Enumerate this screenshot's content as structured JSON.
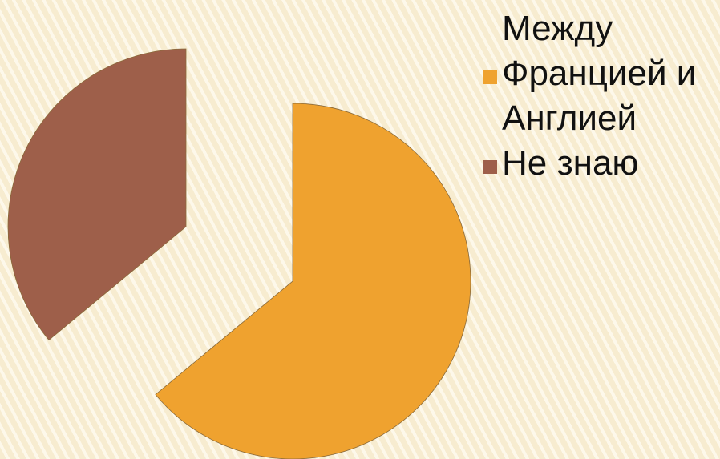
{
  "chart_data": {
    "type": "pie",
    "title": "",
    "exploded": true,
    "start_angle_deg": 0,
    "direction": "clockwise",
    "series": [
      {
        "name": "",
        "slices": [
          {
            "label": "Между Францией и Англией",
            "value": 64,
            "color": "#efa22f"
          },
          {
            "label": "Не знаю",
            "value": 36,
            "color": "#9e5f4a"
          }
        ]
      }
    ],
    "legend": {
      "position": "right",
      "entries": [
        "Между Францией и Англией",
        "Не знаю"
      ]
    }
  },
  "background": {
    "base": "#f8eed2",
    "stripe": "#fdf8ea"
  },
  "slice_outline_color": "#8a6a3a"
}
